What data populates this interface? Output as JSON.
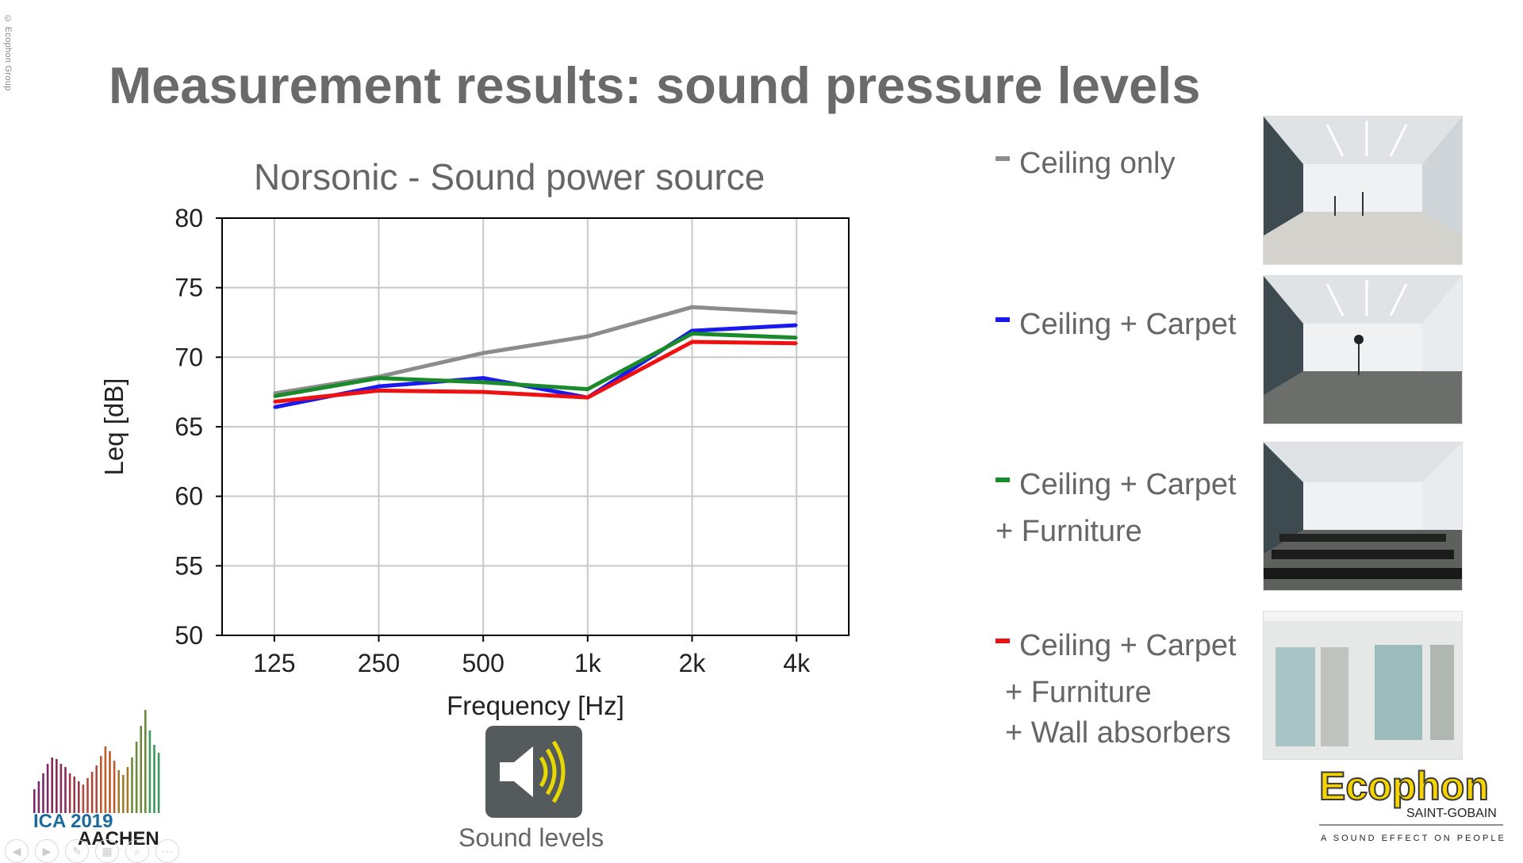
{
  "slide": {
    "copyright": "© Ecophon Group",
    "title": "Measurement results: sound pressure levels"
  },
  "chart_data": {
    "type": "line",
    "title": "Norsonic - Sound power source",
    "xlabel": "Frequency [Hz]",
    "ylabel": "Leq [dB]",
    "categories": [
      "125",
      "250",
      "500",
      "1k",
      "2k",
      "4k"
    ],
    "ylim": [
      50,
      80
    ],
    "yticks": [
      50,
      55,
      60,
      65,
      70,
      75,
      80
    ],
    "grid": true,
    "legend_placement": "right",
    "series": [
      {
        "name": "Ceiling only",
        "color": "#8c8c8c",
        "values": [
          67.4,
          68.6,
          70.3,
          71.5,
          73.6,
          73.2
        ]
      },
      {
        "name": "Ceiling + Carpet",
        "color": "#1a1aee",
        "values": [
          66.4,
          67.9,
          68.5,
          67.1,
          71.9,
          72.3
        ]
      },
      {
        "name": "Ceiling + Carpet + Furniture",
        "color": "#1a8a2a",
        "values": [
          67.2,
          68.5,
          68.2,
          67.7,
          71.7,
          71.4
        ]
      },
      {
        "name": "Ceiling + Carpet + Furniture + Wall absorbers",
        "color": "#ee1111",
        "values": [
          66.8,
          67.6,
          67.5,
          67.1,
          71.1,
          71.0
        ]
      }
    ]
  },
  "legend": {
    "item1": {
      "line1": "Ceiling only",
      "color": "#8c8c8c"
    },
    "item2": {
      "line1": "Ceiling + Carpet",
      "color": "#1a1aee"
    },
    "item3": {
      "line1": "Ceiling + Carpet",
      "line2": "+ Furniture",
      "color": "#1a8a2a"
    },
    "item4": {
      "line1": "Ceiling + Carpet",
      "line2": "+ Furniture",
      "line3": "+ Wall absorbers",
      "color": "#ee1111"
    }
  },
  "sound_button": {
    "label": "Sound levels",
    "icon": "speaker-icon"
  },
  "logos": {
    "ica_text1": "ICA 2019",
    "ica_text2": "AACHEN",
    "ecophon_name": "Ecophon",
    "ecophon_parent": "SAINT-GOBAIN",
    "ecophon_tagline": "A SOUND EFFECT ON PEOPLE"
  }
}
